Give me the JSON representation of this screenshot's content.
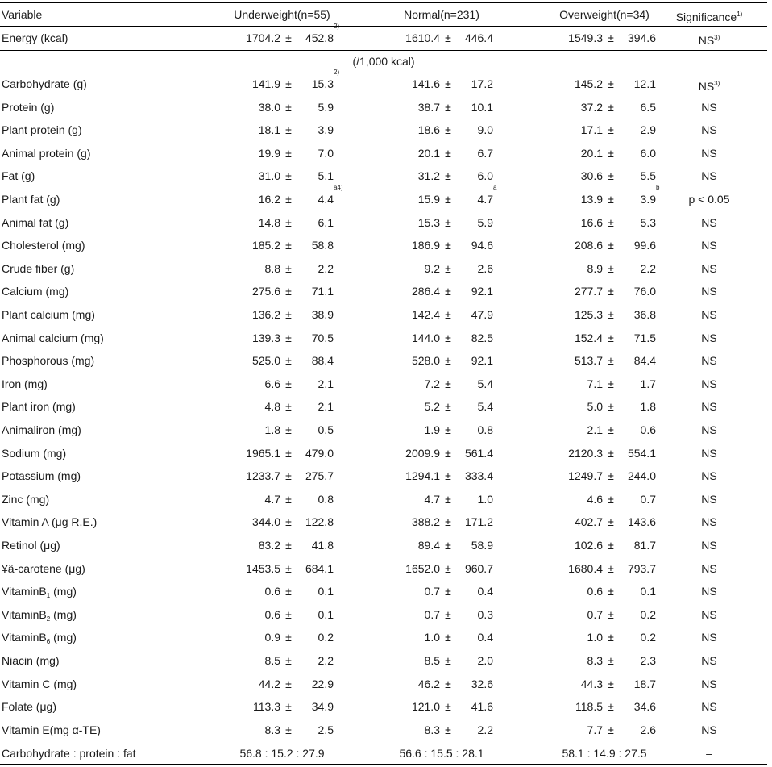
{
  "header": {
    "variable": "Variable",
    "underweight": "Underweight(n=55)",
    "normal": "Normal(n=231)",
    "overweight": "Overweight(n=34)",
    "significance": "Significance",
    "significance_sup": "1)"
  },
  "energy": {
    "label": "Energy (kcal)",
    "u_mean": "1704.2",
    "u_sd": "452.8",
    "u_sup": "2)",
    "n_mean": "1610.4",
    "n_sd": "446.4",
    "o_mean": "1549.3",
    "o_sd": "394.6",
    "sig": "NS",
    "sig_sup": "3)"
  },
  "per_unit": "(/1,000 kcal)",
  "pm": "±",
  "rows": [
    {
      "label": "Carbohydrate (g)",
      "u": [
        "141.9",
        "15.3",
        "2)"
      ],
      "n": [
        "141.6",
        "17.2",
        ""
      ],
      "o": [
        "145.2",
        "12.1",
        ""
      ],
      "sig": "NS",
      "sig_sup": "3)"
    },
    {
      "label": "Protein (g)",
      "u": [
        "38.0",
        "5.9",
        ""
      ],
      "n": [
        "38.7",
        "10.1",
        ""
      ],
      "o": [
        "37.2",
        "6.5",
        ""
      ],
      "sig": "NS",
      "sig_sup": ""
    },
    {
      "label": "Plant protein (g)",
      "u": [
        "18.1",
        "3.9",
        ""
      ],
      "n": [
        "18.6",
        "9.0",
        ""
      ],
      "o": [
        "17.1",
        "2.9",
        ""
      ],
      "sig": "NS",
      "sig_sup": ""
    },
    {
      "label": "Animal protein (g)",
      "u": [
        "19.9",
        "7.0",
        ""
      ],
      "n": [
        "20.1",
        "6.7",
        ""
      ],
      "o": [
        "20.1",
        "6.0",
        ""
      ],
      "sig": "NS",
      "sig_sup": ""
    },
    {
      "label": "Fat (g)",
      "u": [
        "31.0",
        "5.1",
        ""
      ],
      "n": [
        "31.2",
        "6.0",
        ""
      ],
      "o": [
        "30.6",
        "5.5",
        ""
      ],
      "sig": "NS",
      "sig_sup": ""
    },
    {
      "label": "Plant fat (g)",
      "u": [
        "16.2",
        "4.4",
        "a4)"
      ],
      "n": [
        "15.9",
        "4.7",
        "a"
      ],
      "o": [
        "13.9",
        "3.9",
        "b"
      ],
      "sig": "p < 0.05",
      "sig_sup": ""
    },
    {
      "label": "Animal fat (g)",
      "u": [
        "14.8",
        "6.1",
        ""
      ],
      "n": [
        "15.3",
        "5.9",
        ""
      ],
      "o": [
        "16.6",
        "5.3",
        ""
      ],
      "sig": "NS",
      "sig_sup": ""
    },
    {
      "label": "Cholesterol (mg)",
      "u": [
        "185.2",
        "58.8",
        ""
      ],
      "n": [
        "186.9",
        "94.6",
        ""
      ],
      "o": [
        "208.6",
        "99.6",
        ""
      ],
      "sig": "NS",
      "sig_sup": ""
    },
    {
      "label": "Crude fiber (g)",
      "u": [
        "8.8",
        "2.2",
        ""
      ],
      "n": [
        "9.2",
        "2.6",
        ""
      ],
      "o": [
        "8.9",
        "2.2",
        ""
      ],
      "sig": "NS",
      "sig_sup": ""
    },
    {
      "label": "Calcium (mg)",
      "u": [
        "275.6",
        "71.1",
        ""
      ],
      "n": [
        "286.4",
        "92.1",
        ""
      ],
      "o": [
        "277.7",
        "76.0",
        ""
      ],
      "sig": "NS",
      "sig_sup": ""
    },
    {
      "label": "Plant calcium (mg)",
      "u": [
        "136.2",
        "38.9",
        ""
      ],
      "n": [
        "142.4",
        "47.9",
        ""
      ],
      "o": [
        "125.3",
        "36.8",
        ""
      ],
      "sig": "NS",
      "sig_sup": ""
    },
    {
      "label": "Animal calcium (mg)",
      "u": [
        "139.3",
        "70.5",
        ""
      ],
      "n": [
        "144.0",
        "82.5",
        ""
      ],
      "o": [
        "152.4",
        "71.5",
        ""
      ],
      "sig": "NS",
      "sig_sup": ""
    },
    {
      "label": "Phosphorous (mg)",
      "u": [
        "525.0",
        "88.4",
        ""
      ],
      "n": [
        "528.0",
        "92.1",
        ""
      ],
      "o": [
        "513.7",
        "84.4",
        ""
      ],
      "sig": "NS",
      "sig_sup": ""
    },
    {
      "label": "Iron (mg)",
      "u": [
        "6.6",
        "2.1",
        ""
      ],
      "n": [
        "7.2",
        "5.4",
        ""
      ],
      "o": [
        "7.1",
        "1.7",
        ""
      ],
      "sig": "NS",
      "sig_sup": ""
    },
    {
      "label": "Plant iron (mg)",
      "u": [
        "4.8",
        "2.1",
        ""
      ],
      "n": [
        "5.2",
        "5.4",
        ""
      ],
      "o": [
        "5.0",
        "1.8",
        ""
      ],
      "sig": "NS",
      "sig_sup": ""
    },
    {
      "label": "Animaliron (mg)",
      "u": [
        "1.8",
        "0.5",
        ""
      ],
      "n": [
        "1.9",
        "0.8",
        ""
      ],
      "o": [
        "2.1",
        "0.6",
        ""
      ],
      "sig": "NS",
      "sig_sup": ""
    },
    {
      "label": "Sodium (mg)",
      "u": [
        "1965.1",
        "479.0",
        ""
      ],
      "n": [
        "2009.9",
        "561.4",
        ""
      ],
      "o": [
        "2120.3",
        "554.1",
        ""
      ],
      "sig": "NS",
      "sig_sup": ""
    },
    {
      "label": "Potassium (mg)",
      "u": [
        "1233.7",
        "275.7",
        ""
      ],
      "n": [
        "1294.1",
        "333.4",
        ""
      ],
      "o": [
        "1249.7",
        "244.0",
        ""
      ],
      "sig": "NS",
      "sig_sup": ""
    },
    {
      "label": "Zinc (mg)",
      "u": [
        "4.7",
        "0.8",
        ""
      ],
      "n": [
        "4.7",
        "1.0",
        ""
      ],
      "o": [
        "4.6",
        "0.7",
        ""
      ],
      "sig": "NS",
      "sig_sup": ""
    },
    {
      "label": "Vitamin A (μg R.E.)",
      "u": [
        "344.0",
        "122.8",
        ""
      ],
      "n": [
        "388.2",
        "171.2",
        ""
      ],
      "o": [
        "402.7",
        "143.6",
        ""
      ],
      "sig": "NS",
      "sig_sup": ""
    },
    {
      "label": "Retinol (μg)",
      "u": [
        "83.2",
        "41.8",
        ""
      ],
      "n": [
        "89.4",
        "58.9",
        ""
      ],
      "o": [
        "102.6",
        "81.7",
        ""
      ],
      "sig": "NS",
      "sig_sup": ""
    },
    {
      "label": "¥â-carotene (μg)",
      "u": [
        "1453.5",
        "684.1",
        ""
      ],
      "n": [
        "1652.0",
        "960.7",
        ""
      ],
      "o": [
        "1680.4",
        "793.7",
        ""
      ],
      "sig": "NS",
      "sig_sup": ""
    },
    {
      "label": "VitaminB",
      "label_sub": "1",
      "label_tail": " (mg)",
      "u": [
        "0.6",
        "0.1",
        ""
      ],
      "n": [
        "0.7",
        "0.4",
        ""
      ],
      "o": [
        "0.6",
        "0.1",
        ""
      ],
      "sig": "NS",
      "sig_sup": ""
    },
    {
      "label": "VitaminB",
      "label_sub": "2",
      "label_tail": " (mg)",
      "u": [
        "0.6",
        "0.1",
        ""
      ],
      "n": [
        "0.7",
        "0.3",
        ""
      ],
      "o": [
        "0.7",
        "0.2",
        ""
      ],
      "sig": "NS",
      "sig_sup": ""
    },
    {
      "label": "VitaminB",
      "label_sub": "6",
      "label_tail": " (mg)",
      "u": [
        "0.9",
        "0.2",
        ""
      ],
      "n": [
        "1.0",
        "0.4",
        ""
      ],
      "o": [
        "1.0",
        "0.2",
        ""
      ],
      "sig": "NS",
      "sig_sup": ""
    },
    {
      "label": "Niacin (mg)",
      "u": [
        "8.5",
        "2.2",
        ""
      ],
      "n": [
        "8.5",
        "2.0",
        ""
      ],
      "o": [
        "8.3",
        "2.3",
        ""
      ],
      "sig": "NS",
      "sig_sup": ""
    },
    {
      "label": "Vitamin C (mg)",
      "u": [
        "44.2",
        "22.9",
        ""
      ],
      "n": [
        "46.2",
        "32.6",
        ""
      ],
      "o": [
        "44.3",
        "18.7",
        ""
      ],
      "sig": "NS",
      "sig_sup": ""
    },
    {
      "label": "Folate (μg)",
      "u": [
        "113.3",
        "34.9",
        ""
      ],
      "n": [
        "121.0",
        "41.6",
        ""
      ],
      "o": [
        "118.5",
        "34.6",
        ""
      ],
      "sig": "NS",
      "sig_sup": ""
    },
    {
      "label": "Vitamin E(mg α-TE)",
      "u": [
        "8.3",
        "2.5",
        ""
      ],
      "n": [
        "8.3",
        "2.2",
        ""
      ],
      "o": [
        "7.7",
        "2.6",
        ""
      ],
      "sig": "NS",
      "sig_sup": ""
    }
  ],
  "ratio": {
    "label": "Carbohydrate : protein : fat",
    "u": "56.8 : 15.2 : 27.9",
    "n": "56.6 : 15.5 : 28.1",
    "o": "58.1 : 14.9 : 27.5",
    "sig": "–"
  }
}
